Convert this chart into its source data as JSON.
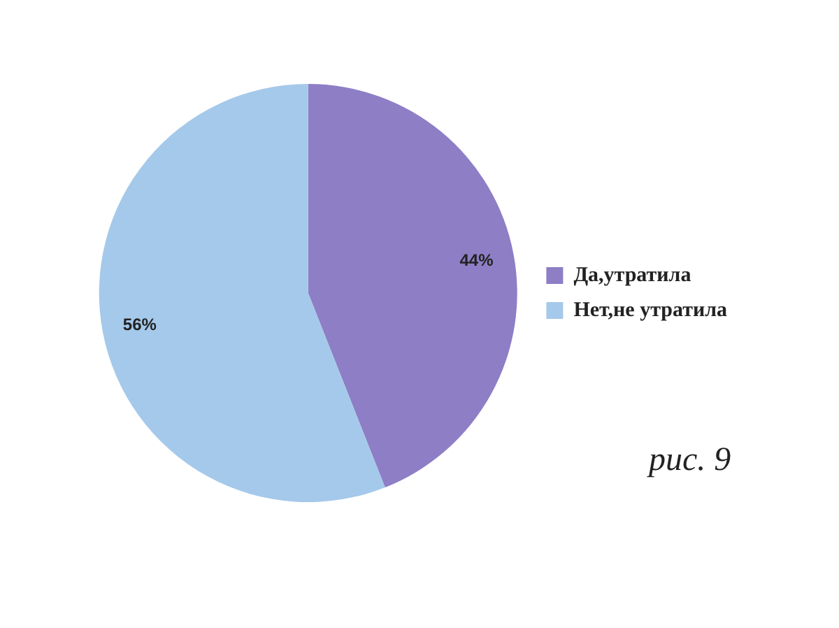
{
  "chart_data": {
    "type": "pie",
    "categories": [
      "Да,утратила",
      "Нет,не утратила"
    ],
    "values": [
      44,
      56
    ],
    "colors": [
      "#8d7ec6",
      "#a5c9ea"
    ],
    "value_labels": [
      "44%",
      "56%"
    ],
    "legend": "right",
    "annotations": [
      "рис. 9"
    ]
  }
}
